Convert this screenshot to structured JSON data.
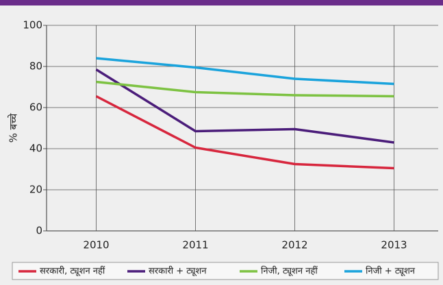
{
  "chart_data": {
    "type": "line",
    "y_label": "% बच्चे",
    "categories": [
      "2010",
      "2011",
      "2012",
      "2013"
    ],
    "series": [
      {
        "name": "सरकारी, ट्यूशन नहीं",
        "color": "#d7263d",
        "values": [
          65.5,
          40.5,
          32.5,
          30.5
        ]
      },
      {
        "name": "सरकारी + ट्यूशन",
        "color": "#4b1d7a",
        "values": [
          78.5,
          48.5,
          49.5,
          43
        ]
      },
      {
        "name": "निजी, ट्यूशन नहीं",
        "color": "#7dc242",
        "values": [
          72.5,
          67.5,
          66,
          65.5
        ]
      },
      {
        "name": "निजी + ट्यूशन",
        "color": "#1aa3dc",
        "values": [
          84,
          79.5,
          74,
          71.5
        ]
      }
    ],
    "ylim": [
      0,
      100
    ],
    "yticks": [
      0,
      20,
      40,
      60,
      80,
      100
    ],
    "grid": true,
    "legend": "bottom"
  }
}
